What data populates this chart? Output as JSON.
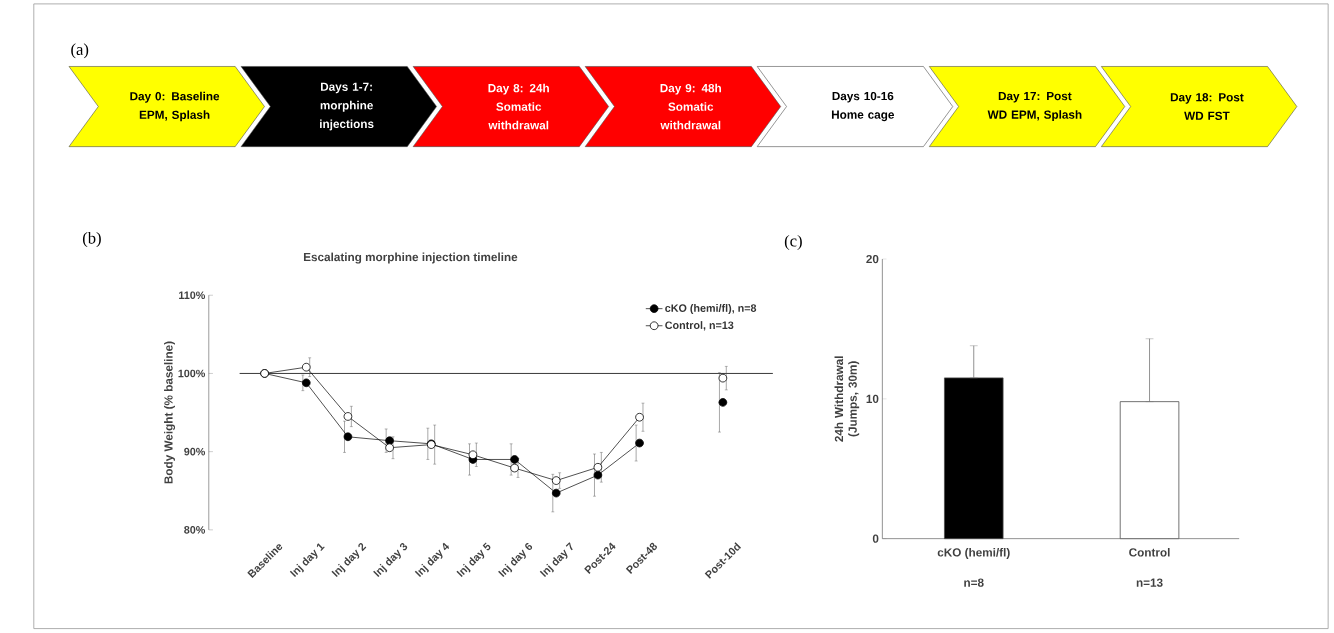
{
  "chart_data": [
    {
      "type": "other",
      "categories": [
        "Day 0: Baseline EPM, Splash",
        "Days 1-7: morphine injections",
        "Day 8: 24h Somatic withdrawal",
        "Day 9: 48h Somatic withdrawal",
        "Days 10-16 Home cage",
        "Day 17: Post WD EPM, Splash",
        "Day 18: Post WD FST"
      ],
      "colors": [
        "#ffff00",
        "#000000",
        "#ff0000",
        "#ff0000",
        "#ffffff",
        "#ffff00",
        "#ffff00"
      ],
      "annotations": [
        "(a)"
      ]
    },
    {
      "type": "line",
      "title": "Escalating morphine injection timeline",
      "ylabel": "Body Weight (% baseline)",
      "categories": [
        "Baseline",
        "Inj day 1",
        "Inj day 2",
        "Inj day 3",
        "Inj day 4",
        "Inj day 5",
        "Inj day 6",
        "Inj day 7",
        "Post-24",
        "Post-48",
        null,
        "Post-10d"
      ],
      "series": [
        {
          "name": "cKO (hemi/fl), n=8",
          "color": "#000000",
          "values": [
            100,
            98.8,
            91.9,
            91.4,
            91.0,
            89.0,
            89.0,
            84.7,
            87.0,
            91.1,
            null,
            96.3
          ],
          "errors": [
            null,
            1.0,
            2.0,
            1.5,
            2.0,
            2.0,
            2.0,
            2.4,
            2.7,
            2.3,
            null,
            3.8
          ]
        },
        {
          "name": "Control, n=13",
          "color": "#ffffff",
          "values": [
            100,
            100.8,
            94.5,
            90.5,
            90.9,
            89.6,
            87.9,
            86.3,
            88.0,
            94.4,
            null,
            99.4
          ],
          "errors": [
            null,
            1.2,
            1.3,
            1.4,
            2.5,
            1.5,
            1.2,
            1.0,
            1.9,
            1.8,
            null,
            1.5
          ]
        }
      ],
      "ylim": [
        80,
        110
      ],
      "yticks": [
        {
          "value": 80,
          "label": "80%"
        },
        {
          "value": 90,
          "label": "90%"
        },
        {
          "value": 100,
          "label": "100%"
        },
        {
          "value": 110,
          "label": "110%"
        }
      ],
      "ref_lines": [
        {
          "axis": "y",
          "value": 100
        }
      ],
      "legend": "top right",
      "marker": "circle",
      "line_style": "solid",
      "annotations": [
        "(b)"
      ]
    },
    {
      "type": "bar",
      "ylabel": "24h Withdrawal (Jumps, 30m)",
      "categories": [
        "cKO (hemi/fl)",
        "Control"
      ],
      "values": [
        11.5,
        9.8
      ],
      "colors": [
        "#000000",
        "#ffffff"
      ],
      "errors": [
        [
          11.5,
          13.8
        ],
        [
          9.8,
          14.3
        ]
      ],
      "ylim": [
        0,
        20
      ],
      "yticks": [
        0,
        10,
        20
      ],
      "annotations": [
        "(c)",
        "n=8",
        "n=13"
      ]
    }
  ]
}
